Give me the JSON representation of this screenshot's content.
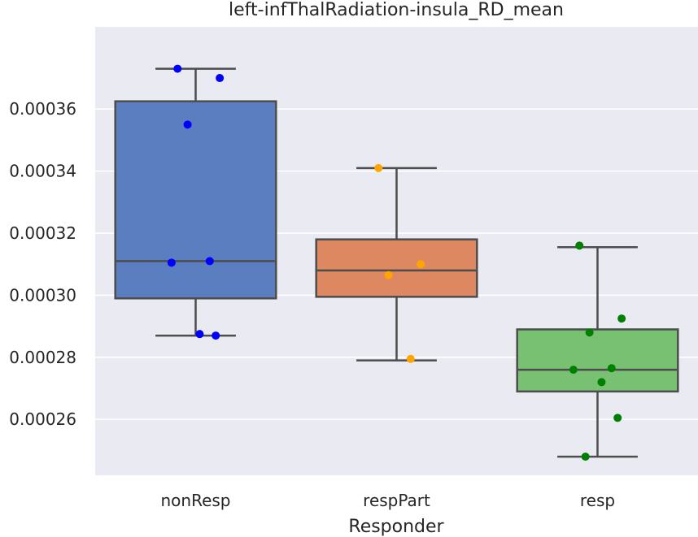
{
  "chart_data": {
    "type": "box",
    "title": "left-infThalRadiation-insula_RD_mean",
    "xlabel": "Responder",
    "ylabel": "",
    "categories": [
      "nonResp",
      "respPart",
      "resp"
    ],
    "yticks": [
      0.00026,
      0.00028,
      0.0003,
      0.00032,
      0.00034,
      0.00036
    ],
    "ytick_labels": [
      "0.00026",
      "0.00028",
      "0.00030",
      "0.00032",
      "0.00034",
      "0.00036"
    ],
    "ylim": [
      0.000242,
      0.0003865
    ],
    "grid": true,
    "series": [
      {
        "category": "nonResp",
        "box_color": "#5b7ec0",
        "point_color": "#0000ff",
        "whisker_low": 0.000287,
        "q1": 0.000299,
        "median": 0.000311,
        "q3": 0.0003625,
        "whisker_high": 0.000373,
        "points": [
          0.000373,
          0.00037,
          0.000355,
          0.000311,
          0.0003105,
          0.0002875,
          0.000287
        ]
      },
      {
        "category": "respPart",
        "box_color": "#dd8860",
        "point_color": "#ffa500",
        "whisker_low": 0.000279,
        "q1": 0.0002995,
        "median": 0.000308,
        "q3": 0.000318,
        "whisker_high": 0.000341,
        "points": [
          0.000341,
          0.00031,
          0.0003065,
          0.0002795
        ]
      },
      {
        "category": "resp",
        "box_color": "#78c072",
        "point_color": "#008000",
        "whisker_low": 0.000248,
        "q1": 0.000269,
        "median": 0.000276,
        "q3": 0.000289,
        "whisker_high": 0.0003155,
        "points": [
          0.000316,
          0.0002925,
          0.000288,
          0.0002765,
          0.000276,
          0.000272,
          0.0002605,
          0.000248
        ]
      }
    ]
  }
}
